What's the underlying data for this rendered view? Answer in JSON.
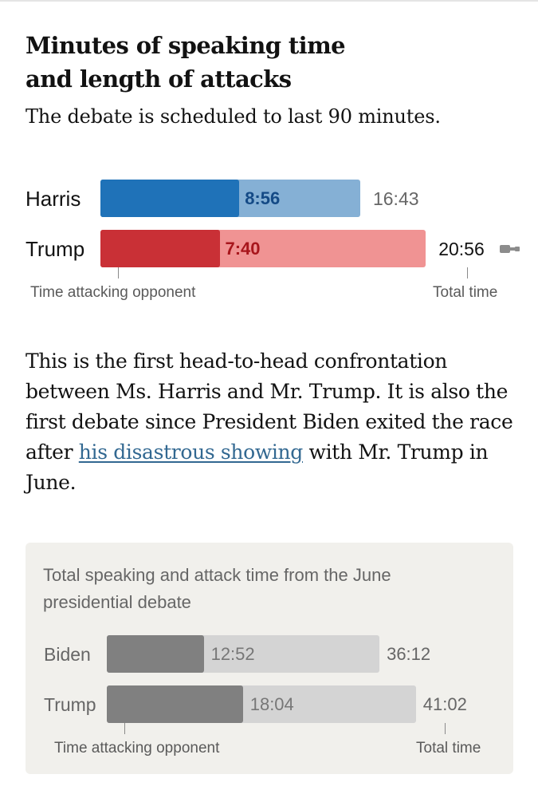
{
  "title_line1": "Minutes of speaking time",
  "title_line2": "and length of attacks",
  "subtitle": "The debate is scheduled to last 90 minutes.",
  "paragraph": {
    "before_link": "This is the first head-to-head confrontation between Ms. Harris and Mr. Trump. It is also the first debate since President Biden exited the race after ",
    "link_text": "his disastrous showing",
    "after_link": " with Mr. Trump in June."
  },
  "colors": {
    "harris_total": "#85b0d5",
    "harris_attack": "#1f72b8",
    "harris_attack_text": "#144a86",
    "trump_total": "#f09393",
    "trump_attack": "#c93036",
    "trump_attack_text": "#a8161c",
    "june_total": "#d4d4d4",
    "june_attack": "#808080",
    "panel_bg": "#f1f0ec"
  },
  "chart_data": [
    {
      "type": "bar",
      "orientation": "horizontal",
      "title": "Minutes of speaking time and length of attacks",
      "subtitle": "The debate is scheduled to last 90 minutes.",
      "categories": [
        "Harris",
        "Trump"
      ],
      "series": [
        {
          "name": "Time attacking opponent",
          "values": [
            8.933,
            7.667
          ],
          "labels": [
            "8:56",
            "7:40"
          ]
        },
        {
          "name": "Total time",
          "values": [
            16.717,
            20.933
          ],
          "labels": [
            "16:43",
            "20:56"
          ]
        }
      ],
      "live_indicator": "mic-icon"
    },
    {
      "type": "bar",
      "orientation": "horizontal",
      "title": "Total speaking and attack time from the June presidential debate",
      "categories": [
        "Biden",
        "Trump"
      ],
      "series": [
        {
          "name": "Time attacking opponent",
          "values": [
            12.867,
            18.067
          ],
          "labels": [
            "12:52",
            "18:04"
          ]
        },
        {
          "name": "Total time",
          "values": [
            36.2,
            41.033
          ],
          "labels": [
            "36:12",
            "41:02"
          ]
        }
      ]
    }
  ]
}
